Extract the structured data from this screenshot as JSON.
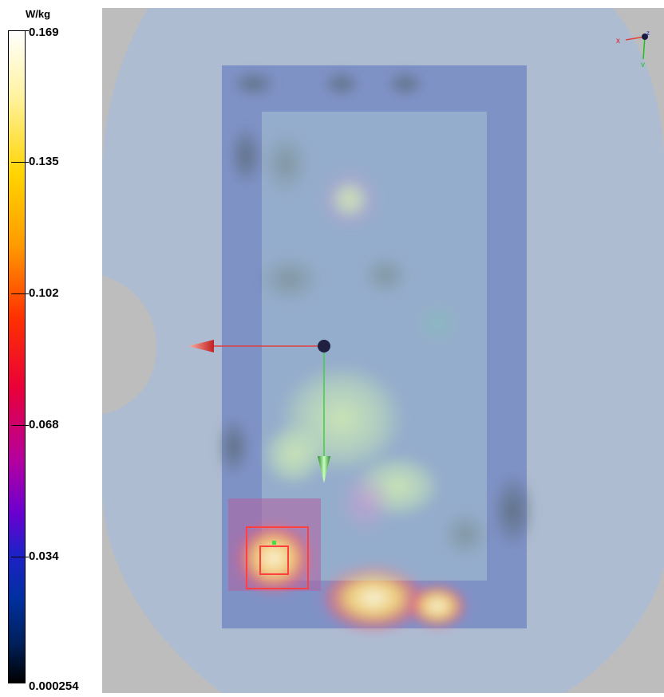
{
  "legend": {
    "unit": "W/kg",
    "labels": [
      "0.169",
      "0.135",
      "0.102",
      "0.068",
      "0.034",
      "0.000254"
    ]
  },
  "gizmo": {
    "x_label": "x",
    "y_label": "y",
    "z_label": "z"
  },
  "colors": {
    "background": "#bdbdbd",
    "phantom": "#aebcd2",
    "coarse_scan": "#7a8fc8",
    "fine_scan_box": "#ff4040",
    "x_arrow": "#e04040",
    "y_arrow": "#40d040",
    "origin": "#202040"
  }
}
